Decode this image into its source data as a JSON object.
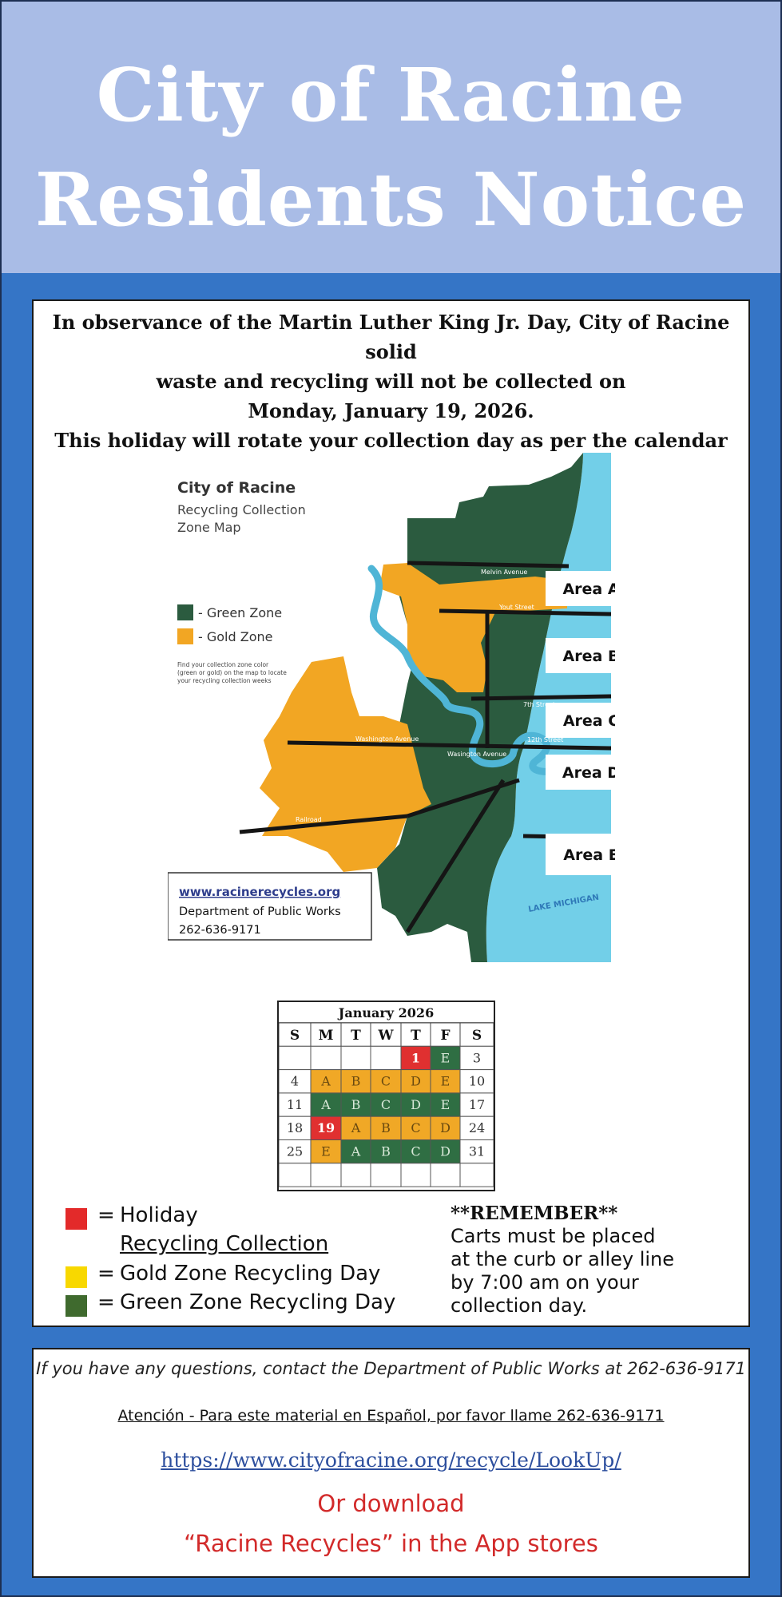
{
  "header": {
    "title_line1": "City of Racine",
    "title_line2": "Residents Notice"
  },
  "notice": {
    "line1": "In observance of the Martin Luther King Jr. Day, City of Racine solid",
    "line2": "waste and recycling will not be collected on",
    "line3": "Monday, January 19, 2026.",
    "line4": "This holiday will rotate your collection day as per the calendar below."
  },
  "map": {
    "title": "City of Racine",
    "subtitle_line1": "Recycling Collection",
    "subtitle_line2": "Zone Map",
    "legend_green": "- Green Zone",
    "legend_gold": "- Gold Zone",
    "hint_line1": "Find your collection zone color",
    "hint_line2": "(green or gold) on the map to locate",
    "hint_line3": "your recycling collection weeks",
    "areas": [
      "Area A",
      "Area B",
      "Area C",
      "Area D",
      "Area E"
    ],
    "streets": {
      "melvin": "Melvin Avenue",
      "yout": "Yout Street",
      "seventh": "7th Street",
      "twelfth": "12th Street",
      "washington": "Washington Avenue",
      "washington2": "Wasington Avenue",
      "railroad": "Railroad",
      "lake": "LAKE MICHIGAN"
    },
    "info_url": "www.racinerecycles.org",
    "info_dept": "Department of Public Works",
    "info_phone": "262-636-9171",
    "colors": {
      "green_zone": "#2b5b3f",
      "gold_zone": "#f2a623",
      "lake": "#72cfe8",
      "river": "#4fb5d6"
    }
  },
  "calendar": {
    "title": "January 2026",
    "weekdays": [
      "S",
      "M",
      "T",
      "W",
      "T",
      "F",
      "S"
    ],
    "rows": [
      [
        {
          "d": "",
          "c": "w"
        },
        {
          "d": "",
          "c": "w"
        },
        {
          "d": "",
          "c": "w"
        },
        {
          "d": "",
          "c": "w"
        },
        {
          "d": "1",
          "c": "h"
        },
        {
          "d": "E",
          "c": "g"
        },
        {
          "d": "3",
          "c": "w"
        }
      ],
      [
        {
          "d": "4",
          "c": "w"
        },
        {
          "d": "A",
          "c": "o"
        },
        {
          "d": "B",
          "c": "o"
        },
        {
          "d": "C",
          "c": "o"
        },
        {
          "d": "D",
          "c": "o"
        },
        {
          "d": "E",
          "c": "o"
        },
        {
          "d": "10",
          "c": "w"
        }
      ],
      [
        {
          "d": "11",
          "c": "w"
        },
        {
          "d": "A",
          "c": "g"
        },
        {
          "d": "B",
          "c": "g"
        },
        {
          "d": "C",
          "c": "g"
        },
        {
          "d": "D",
          "c": "g"
        },
        {
          "d": "E",
          "c": "g"
        },
        {
          "d": "17",
          "c": "w"
        }
      ],
      [
        {
          "d": "18",
          "c": "w"
        },
        {
          "d": "19",
          "c": "h"
        },
        {
          "d": "A",
          "c": "o"
        },
        {
          "d": "B",
          "c": "o"
        },
        {
          "d": "C",
          "c": "o"
        },
        {
          "d": "D",
          "c": "o"
        },
        {
          "d": "24",
          "c": "w"
        }
      ],
      [
        {
          "d": "25",
          "c": "w"
        },
        {
          "d": "E",
          "c": "o"
        },
        {
          "d": "A",
          "c": "g"
        },
        {
          "d": "B",
          "c": "g"
        },
        {
          "d": "C",
          "c": "g"
        },
        {
          "d": "D",
          "c": "g"
        },
        {
          "d": "31",
          "c": "w"
        }
      ],
      [
        {
          "d": "",
          "c": "w"
        },
        {
          "d": "",
          "c": "w"
        },
        {
          "d": "",
          "c": "w"
        },
        {
          "d": "",
          "c": "w"
        },
        {
          "d": "",
          "c": "w"
        },
        {
          "d": "",
          "c": "w"
        },
        {
          "d": "",
          "c": "w"
        }
      ]
    ],
    "colors": {
      "holiday": "#e03030",
      "gold": "#f0a826",
      "green": "#2f6e43",
      "white": "#ffffff"
    }
  },
  "legend": {
    "eq": "=",
    "holiday_line1": "Holiday",
    "holiday_line2": "Recycling Collection",
    "gold": "Gold Zone Recycling Day",
    "green": "Green Zone Recycling Day",
    "colors": {
      "holiday": "#e32a2a",
      "gold": "#f8d800",
      "green": "#3f6a2e"
    }
  },
  "remember": {
    "title": "**REMEMBER**",
    "line1": "Carts must be placed",
    "line2": "at the curb or alley line",
    "line3": "by 7:00 am on your",
    "line4": "collection day."
  },
  "contact": {
    "questions": "If you have any questions, contact the Department of Public Works at 262-636-9171",
    "spanish": "Atención - Para este material en Español, por favor llame 262-636-9171",
    "url": "https://www.cityofracine.org/recycle/LookUp/",
    "download_line1": "Or download",
    "download_line2": "“Racine Recycles” in the App stores"
  }
}
